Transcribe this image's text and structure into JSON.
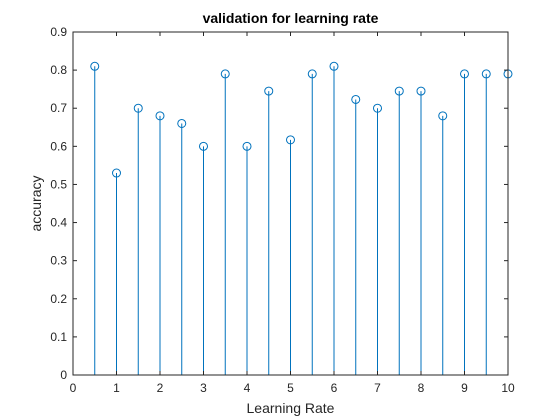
{
  "chart_data": {
    "type": "stem",
    "title": "validation for learning rate",
    "xlabel": "Learning Rate",
    "ylabel": "accuracy",
    "xlim": [
      0,
      10
    ],
    "ylim": [
      0,
      0.9
    ],
    "xticks": [
      0,
      1,
      2,
      3,
      4,
      5,
      6,
      7,
      8,
      9,
      10
    ],
    "yticks": [
      0,
      0.1,
      0.2,
      0.3,
      0.4,
      0.5,
      0.6,
      0.7,
      0.8,
      0.9
    ],
    "xtick_labels": [
      "0",
      "1",
      "2",
      "3",
      "4",
      "5",
      "6",
      "7",
      "8",
      "9",
      "10"
    ],
    "ytick_labels": [
      "0",
      "0.1",
      "0.2",
      "0.3",
      "0.4",
      "0.5",
      "0.6",
      "0.7",
      "0.8",
      "0.9"
    ],
    "series": [
      {
        "color": "#0072bd",
        "x": [
          0.5,
          1,
          1.5,
          2,
          2.5,
          3,
          3.5,
          4,
          4.5,
          5,
          5.5,
          6,
          6.5,
          7,
          7.5,
          8,
          8.5,
          9,
          9.5,
          10
        ],
        "y": [
          0.81,
          0.53,
          0.7,
          0.68,
          0.66,
          0.6,
          0.79,
          0.6,
          0.745,
          0.617,
          0.79,
          0.81,
          0.723,
          0.7,
          0.745,
          0.745,
          0.68,
          0.79,
          0.79,
          0.79
        ]
      }
    ],
    "grid": false,
    "box": true
  }
}
